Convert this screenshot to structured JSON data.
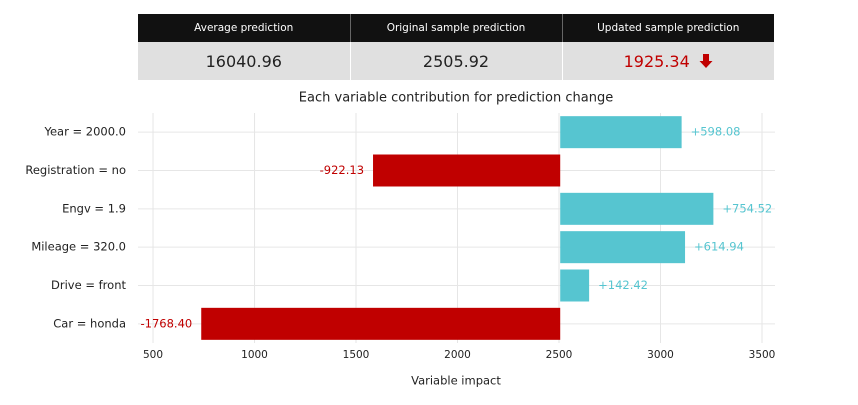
{
  "header": {
    "columns": [
      "Average prediction",
      "Original sample prediction",
      "Updated sample prediction"
    ],
    "values": [
      16040.96,
      2505.92,
      1925.34
    ]
  },
  "chart_data": {
    "type": "bar",
    "title": "Each variable contribution for prediction change",
    "xlabel": "Variable impact",
    "categories": [
      "Year = 2000.0",
      "Registration = no",
      "Engv = 1.9",
      "Mileage = 320.0",
      "Drive = front",
      "Car = honda"
    ],
    "values": [
      598.08,
      -922.13,
      754.52,
      614.94,
      142.42,
      -1768.4
    ],
    "value_labels": [
      "+598.08",
      "-922.13",
      "+754.52",
      "+614.94",
      "+142.42",
      "-1768.40"
    ],
    "colors": {
      "positive": "#56c5d0",
      "negative": "#c00000"
    },
    "xlim": [
      426,
      3564
    ],
    "xticks": [
      500,
      1000,
      1500,
      2000,
      2500,
      3000,
      3500
    ],
    "grid": true
  }
}
